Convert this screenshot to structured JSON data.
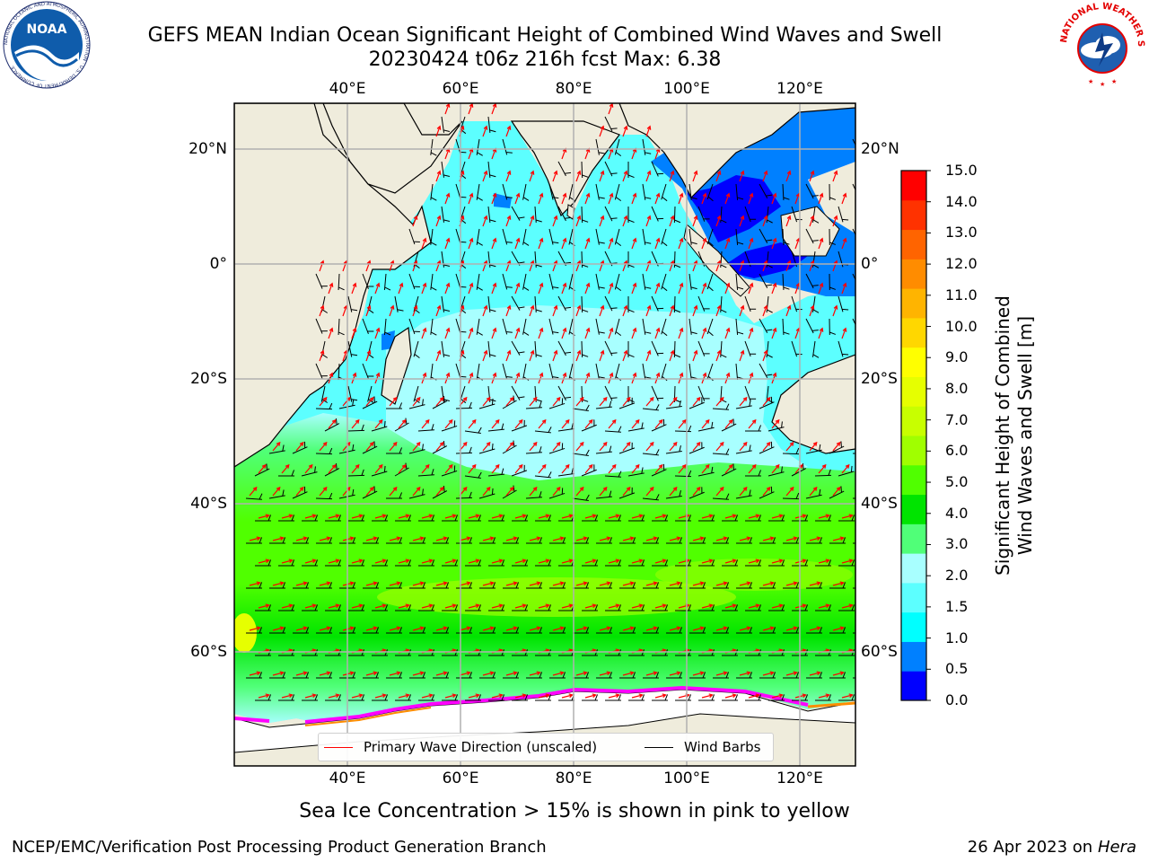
{
  "title": {
    "line1": "GEFS MEAN Indian Ocean Significant Height of Combined Wind Waves and Swell",
    "line2": "20230424 t06z 216h fcst   Max: 6.38"
  },
  "logos": {
    "left": {
      "name": "noaa-logo",
      "text": "NOAA",
      "ring_text": "NATIONAL OCEANIC AND ATMOSPHERIC ADMINISTRATION · U.S. DEPARTMENT OF COMMERCE"
    },
    "right": {
      "name": "nws-logo",
      "ring_text": "NATIONAL WEATHER SERVICE"
    }
  },
  "map": {
    "lon_ticks": [
      "40°E",
      "60°E",
      "80°E",
      "100°E",
      "120°E"
    ],
    "lat_ticks_left": [
      "20°N",
      "0°",
      "20°S",
      "40°S",
      "60°S"
    ],
    "lat_ticks_right": [
      "20°N",
      "0°",
      "20°S",
      "40°S",
      "60°S"
    ],
    "land_color": "#efecdc",
    "ice_colors": [
      "#ff00ff",
      "#ff8c00",
      "#ffd700"
    ],
    "legend": {
      "wave": {
        "label": "Primary Wave Direction (unscaled)",
        "color": "#ff0000"
      },
      "wind": {
        "label": "Wind Barbs",
        "color": "#000000"
      }
    }
  },
  "colorbar": {
    "title": "Significant Height of Combined\nWind Waves and Swell [m]",
    "ticks": [
      "0.0",
      "0.5",
      "1.0",
      "1.5",
      "2.0",
      "3.0",
      "4.0",
      "5.0",
      "6.0",
      "7.0",
      "8.0",
      "9.0",
      "10.0",
      "11.0",
      "12.0",
      "13.0",
      "14.0",
      "15.0"
    ],
    "colors": [
      "#0000ff",
      "#0080ff",
      "#00ffff",
      "#5cffff",
      "#a8ffff",
      "#50ff78",
      "#00e400",
      "#50ff00",
      "#a0ff00",
      "#c8ff00",
      "#e6ff00",
      "#ffff00",
      "#ffd700",
      "#ffb400",
      "#ff8c00",
      "#ff6400",
      "#ff3200",
      "#ff0000"
    ]
  },
  "note": "Sea Ice Concentration > 15% is shown in pink to yellow",
  "footer": {
    "left": "NCEP/EMC/Verification Post Processing Product Generation Branch",
    "right_date": "26 Apr 2023 on ",
    "right_host": "Hera"
  }
}
